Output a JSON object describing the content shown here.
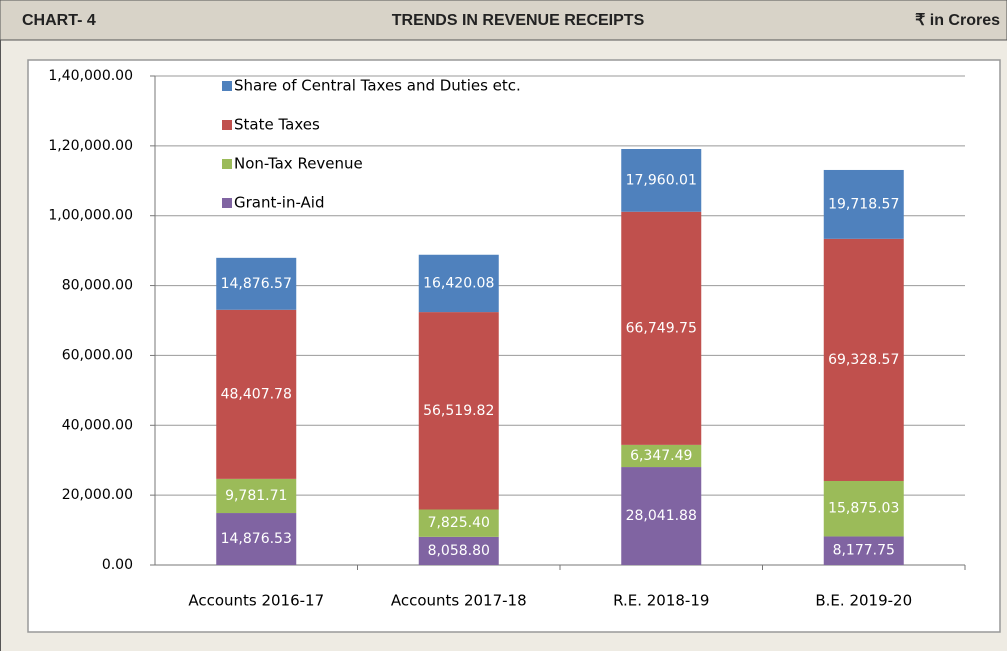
{
  "chart_data": {
    "type": "stacked_bar",
    "label": "CHART- 4",
    "title": "TRENDS IN REVENUE RECEIPTS",
    "unit": "₹ in Crores",
    "categories": [
      "Accounts 2016-17",
      "Accounts 2017-18",
      "R.E. 2018-19",
      "B.E. 2019-20"
    ],
    "series": [
      {
        "name": "Grant-in-Aid",
        "color": "#8064a2",
        "values": [
          14876.53,
          8058.8,
          28041.88,
          8177.75
        ],
        "value_labels": [
          "14,876.53",
          "8,058.80",
          "28,041.88",
          "8,177.75"
        ]
      },
      {
        "name": "Non-Tax Revenue",
        "color": "#9bbb59",
        "values": [
          9781.71,
          7825.4,
          6347.49,
          15875.03
        ],
        "value_labels": [
          "9,781.71",
          "7,825.40",
          "6,347.49",
          "15,875.03"
        ]
      },
      {
        "name": "State Taxes",
        "color": "#c0504d",
        "values": [
          48407.78,
          56519.82,
          66749.75,
          69328.57
        ],
        "value_labels": [
          "48,407.78",
          "56,519.82",
          "66,749.75",
          "69,328.57"
        ]
      },
      {
        "name": "Share of Central Taxes and Duties etc.",
        "color": "#4f81bd",
        "values": [
          14876.57,
          16420.08,
          17960.01,
          19718.57
        ],
        "value_labels": [
          "14,876.57",
          "16,420.08",
          "17,960.01",
          "19,718.57"
        ]
      }
    ],
    "ylim": [
      0,
      140000
    ],
    "yticks": [
      {
        "value": 0,
        "label": "0.00"
      },
      {
        "value": 20000,
        "label": "20,000.00"
      },
      {
        "value": 40000,
        "label": "40,000.00"
      },
      {
        "value": 60000,
        "label": "60,000.00"
      },
      {
        "value": 80000,
        "label": "80,000.00"
      },
      {
        "value": 100000,
        "label": "1,00,000.00"
      },
      {
        "value": 120000,
        "label": "1,20,000.00"
      },
      {
        "value": 140000,
        "label": "1,40,000.00"
      }
    ],
    "grid": true
  }
}
